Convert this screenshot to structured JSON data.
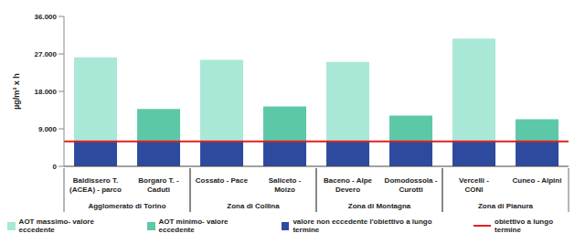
{
  "chart_data": {
    "type": "bar",
    "stacked": true,
    "y_label": "µg/m³ x h",
    "categories": [
      "Baldissero T. (ACEA) - parco",
      "Borgaro T. - Caduti",
      "Cossato - Pace",
      "Saliceto - Moizo",
      "Baceno - Alpe Devero",
      "Domodossola - Curotti",
      "Vercelli - CONI",
      "Cuneo - Alpini"
    ],
    "zones": [
      "Agglomerato di Torino",
      "Agglomerato di Torino",
      "Zona di Collina",
      "Zona di Collina",
      "Zona di Montagna",
      "Zona di Montagna",
      "Zona di Pianura",
      "Zona di Pianura"
    ],
    "series": [
      {
        "name": "valore non eccedente l'obiettivo a lungo termine",
        "color": "#2e4a9e",
        "values": [
          6000,
          6000,
          6000,
          6000,
          6000,
          6000,
          6000,
          6000
        ]
      },
      {
        "name": "AOT minimo- valore eccedente",
        "color": "#5cc8a8",
        "values": [
          null,
          7800,
          null,
          8400,
          null,
          6200,
          null,
          5300
        ]
      },
      {
        "name": "AOT massimo- valore eccedente",
        "color": "#a9e8d6",
        "values": [
          20200,
          null,
          19600,
          null,
          19100,
          null,
          24700,
          null
        ]
      }
    ],
    "reference_line": {
      "name": "obiettivo a lungo termine",
      "value": 6000,
      "color": "#e02020"
    },
    "ylim": [
      0,
      36000
    ],
    "yticks": [
      0,
      {
        "value": 9000,
        "label": "9.000"
      },
      {
        "value": 18000,
        "label": "18.000"
      },
      {
        "value": 27000,
        "label": "27.000"
      },
      {
        "value": 36000,
        "label": "36.000"
      }
    ],
    "grid": false,
    "legend": "bottom"
  }
}
